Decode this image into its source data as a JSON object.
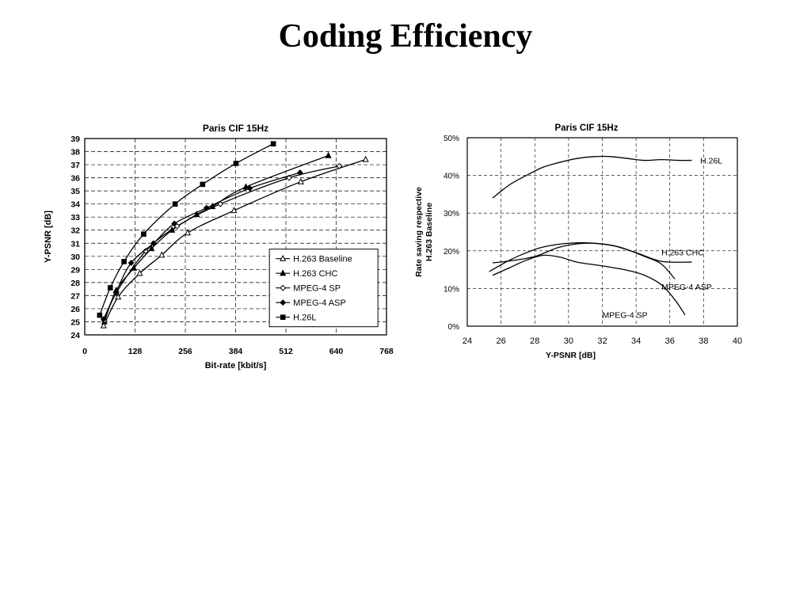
{
  "slide": {
    "title": "Coding Efficiency"
  },
  "chart_data": [
    {
      "type": "line",
      "title": "Paris CIF 15Hz",
      "xlabel": "Bit-rate [kbit/s]",
      "ylabel": "Y-PSNR [dB]",
      "xlim": [
        0,
        768
      ],
      "ylim": [
        24,
        39
      ],
      "xticks": [
        0,
        128,
        256,
        384,
        512,
        640,
        768
      ],
      "yticks": [
        24,
        25,
        26,
        27,
        28,
        29,
        30,
        31,
        32,
        33,
        34,
        35,
        36,
        37,
        38,
        39
      ],
      "grid": true,
      "legend_position": "bottom-right",
      "series": [
        {
          "name": "H.263 Baseline",
          "marker": "triangle-open",
          "x": [
            48,
            85,
            140,
            196,
            262,
            380,
            550,
            715
          ],
          "y": [
            24.7,
            26.9,
            28.7,
            30.1,
            31.8,
            33.5,
            35.7,
            37.4
          ]
        },
        {
          "name": "H.263 CHC",
          "marker": "triangle-filled",
          "x": [
            50,
            80,
            125,
            170,
            222,
            285,
            325,
            410,
            620
          ],
          "y": [
            25.0,
            27.4,
            29.1,
            30.6,
            32.0,
            33.2,
            33.8,
            35.3,
            37.7
          ]
        },
        {
          "name": "MPEG-4 SP",
          "marker": "diamond-open",
          "x": [
            50,
            80,
            155,
            235,
            345,
            520,
            648
          ],
          "y": [
            25.1,
            27.2,
            30.4,
            32.3,
            34.0,
            36.0,
            36.9
          ]
        },
        {
          "name": "MPEG-4 ASP",
          "marker": "diamond-filled",
          "x": [
            48,
            80,
            118,
            175,
            228,
            310,
            420,
            548
          ],
          "y": [
            25.2,
            27.3,
            29.5,
            31.0,
            32.5,
            33.7,
            35.2,
            36.4
          ]
        },
        {
          "name": "H.26L",
          "marker": "square-filled",
          "x": [
            38,
            65,
            100,
            150,
            230,
            300,
            385,
            480
          ],
          "y": [
            25.5,
            27.6,
            29.6,
            31.7,
            34.0,
            35.5,
            37.1,
            38.6
          ]
        }
      ]
    },
    {
      "type": "line",
      "title": "Paris CIF 15Hz",
      "xlabel": "Y-PSNR [dB]",
      "ylabel_line1": "Rate saving respective",
      "ylabel_line2": "H.263 Baseline",
      "xlim": [
        24,
        40
      ],
      "ylim": [
        0,
        50
      ],
      "xticks": [
        "24",
        "26",
        "28",
        "30",
        "32",
        "34",
        "36",
        "38",
        "40"
      ],
      "yticks": [
        "0%",
        "10%",
        "20%",
        "30%",
        "40%",
        "50%"
      ],
      "grid": true,
      "series": [
        {
          "name": "H.26L",
          "x": [
            25.5,
            26.5,
            27.5,
            28.5,
            29.5,
            30.5,
            31.5,
            32.5,
            33.5,
            34.5,
            35.5,
            36.5,
            37.3
          ],
          "y": [
            34.0,
            37.5,
            40.0,
            42.2,
            43.5,
            44.5,
            45.0,
            45.0,
            44.5,
            44.0,
            44.2,
            44.0,
            44.0
          ]
        },
        {
          "name": "H.263 CHC",
          "x": [
            25.5,
            26.5,
            28,
            29.5,
            31,
            32.5,
            34,
            35.5,
            37.3
          ],
          "y": [
            16.8,
            17.3,
            18.5,
            21.0,
            22.0,
            21.5,
            19.5,
            17.2,
            17.0
          ]
        },
        {
          "name": "MPEG-4 ASP",
          "x": [
            25.3,
            26.5,
            27.5,
            28.5,
            30,
            31.5,
            33,
            34.5,
            35.5,
            36.3
          ],
          "y": [
            14.5,
            17.5,
            19.5,
            21.0,
            22.0,
            22.0,
            21.0,
            18.5,
            16.5,
            12.5
          ]
        },
        {
          "name": "MPEG-4 SP",
          "x": [
            25.5,
            26.5,
            27.5,
            28.5,
            29.5,
            30.5,
            32,
            33.5,
            34.5,
            35.5,
            36.3,
            36.9
          ],
          "y": [
            13.5,
            15.5,
            17.5,
            18.8,
            18.3,
            17.0,
            16.0,
            14.8,
            13.5,
            11.0,
            7.0,
            3.0
          ]
        }
      ]
    }
  ]
}
